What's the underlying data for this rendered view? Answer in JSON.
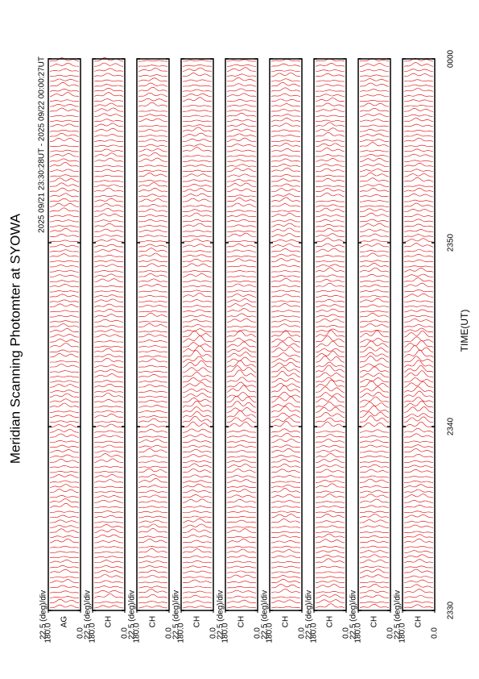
{
  "chart_data": {
    "type": "scan-panels",
    "title": "Meridian Scanning Photomter at SYOWA",
    "subtitle": "2025 09/21 23:30:28UT - 2025 09/22 00:00:27UT",
    "xlabel": "TIME(UT)",
    "xlim": [
      0,
      30
    ],
    "xticks": [
      {
        "value": 0,
        "label": "2330"
      },
      {
        "value": 10,
        "label": "2340"
      },
      {
        "value": 20,
        "label": "2350"
      },
      {
        "value": 30,
        "label": "0000"
      }
    ],
    "ylim": [
      0,
      180
    ],
    "yticks": [
      {
        "value": 180,
        "label": "180.0"
      },
      {
        "value": 0,
        "label": "0.0"
      }
    ],
    "scale_label": "22.5 (deg)/div",
    "color": "#e00000",
    "panels": [
      "AG",
      "CH",
      "CH",
      "CH",
      "CH",
      "CH",
      "CH",
      "CH",
      "CH"
    ]
  }
}
